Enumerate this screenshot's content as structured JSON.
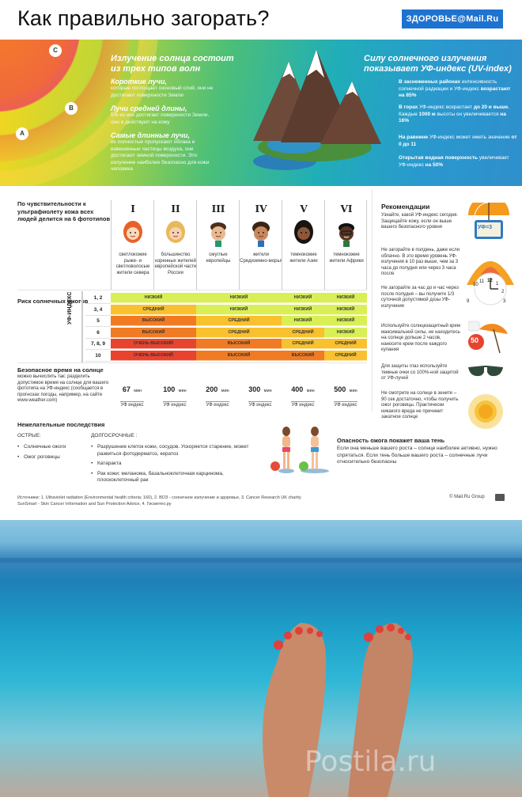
{
  "header": {
    "title": "Как правильно загорать?",
    "brand": "ЗДОРОВЬЕ@Mail.Ru"
  },
  "waves": {
    "title": "Излучение солнца состоит из трех типов волн",
    "labels": [
      "C",
      "B",
      "A"
    ],
    "items": [
      {
        "head": "Короткие лучи,",
        "text": "которые поглощает озоновый слой, они не достигают поверхности Земли"
      },
      {
        "head": "Лучи средней длины,",
        "text": "5% из них достигает поверхности Земли, они и действуют на кожу"
      },
      {
        "head": "Самые длинные лучи,",
        "text": "их полностью пропускают облака и взвешенные частицы воздуха, они достигают земной поверхности. Это излучение наиболее безопасно для кожи человека"
      }
    ]
  },
  "uv_index": {
    "title": "Силу солнечного излучения показывает УФ-индекс (UV-index)",
    "items": [
      {
        "bold": "В заснеженных районах",
        "text": "интенсивность солнечной радиации и УФ-индекс",
        "bold2": "возрастают на 85%"
      },
      {
        "bold": "В горах",
        "text": "УФ-индекс возрастает",
        "bold2": "до 20 и выше.",
        "text2": "Каждые",
        "bold3": "1000 м",
        "text3": "высоты он увеличивается",
        "bold4": "на 16%"
      },
      {
        "bold": "На равнине",
        "text": "УФ-индекс может иметь значение",
        "bold2": "от 0 до 11"
      },
      {
        "bold": "Открытая водная поверхность",
        "text": "увеличивает УФ-индекс",
        "bold2": "на 50%"
      }
    ]
  },
  "phototypes": {
    "intro": "По чувствительности к ультрафиолету кожа всех людей делится на 6 фототипов",
    "types": [
      {
        "num": "I",
        "desc": "светлокожие рыже- и светловолосые жители севера"
      },
      {
        "num": "II",
        "desc": "большинство коренных жителей европейской части России"
      },
      {
        "num": "III",
        "desc": "смуглые европейцы"
      },
      {
        "num": "IV",
        "desc": "жители Средиземно-морья"
      },
      {
        "num": "V",
        "desc": "темнокожие жители Азии"
      },
      {
        "num": "VI",
        "desc": "темнокожие жители Африки"
      }
    ]
  },
  "risk": {
    "title": "Риск солнечных ожогов",
    "uv_label": "УФ-ИНДЕКС",
    "rows": [
      {
        "uv": "1, 2",
        "cells": [
          "НИЗКИЙ",
          "НИЗКИЙ",
          "НИЗКИЙ",
          "НИЗКИЙ"
        ]
      },
      {
        "uv": "3, 4",
        "cells": [
          "СРЕДНИЙ",
          "НИЗКИЙ",
          "НИЗКИЙ",
          "НИЗКИЙ"
        ]
      },
      {
        "uv": "5",
        "cells": [
          "ВЫСОКИЙ",
          "СРЕДНИЙ",
          "НИЗКИЙ",
          "НИЗКИЙ"
        ]
      },
      {
        "uv": "6",
        "cells": [
          "ВЫСОКИЙ",
          "СРЕДНИЙ",
          "СРЕДНИЙ",
          "НИЗКИЙ"
        ]
      },
      {
        "uv": "7, 8, 9",
        "cells": [
          "ОЧЕНЬ ВЫСОКИЙ",
          "ВЫСОКИЙ",
          "СРЕДНИЙ",
          "СРЕДНИЙ"
        ]
      },
      {
        "uv": "10",
        "cells": [
          "ОЧЕНЬ ВЫСОКИЙ",
          "ВЫСОКИЙ",
          "ВЫСОКИЙ",
          "СРЕДНИЙ"
        ]
      }
    ],
    "colors": {
      "НИЗКИЙ": "#d9ef55",
      "СРЕДНИЙ": "#f9c12e",
      "ВЫСОКИЙ": "#f07b22",
      "ОЧЕНЬ ВЫСОКИЙ": "#e8432e"
    }
  },
  "safe_time": {
    "title": "Безопасное время на солнце",
    "text": "можно вычислить так: разделить допустимое время на солнце для вашего фототипа на УФ-индекс (сообщается в прогнозах погоды, например, на сайте www.weather.com)",
    "unit": "мин",
    "sub": "УФ индекс",
    "values": [
      "67",
      "100",
      "200",
      "300",
      "400",
      "500"
    ]
  },
  "recommendations": {
    "title": "Рекомендации",
    "items": [
      "Узнайте, какой УФ-индекс сегодня. Защищайте кожу, если он выше вашего безопасного уровня",
      "Не загорайте в полдень, даже если облачно. В это время уровень УФ-излучения в 10 раз выше, чем за 3 часа до полудня или через 3 часа после",
      "Не загорайте за час до и час через после полудня – вы получите 1/3 суточной допустимой дозы УФ-излучения",
      "Используйте солнцезащитный крем максимальной силы, не находитесь на солнце дольше 2 часов, наносите крем после каждого купания",
      "Для защиты глаз используйте темные очки со 100%-ной защитой от УФ-лучей",
      "Не смотрите на солнце в зените – 90 сек достаточно, чтобы получить ожог роговицы. Практически никакого вреда не причинит закатное солнце"
    ],
    "tv_label": "УФ=3",
    "clock": [
      "12",
      "1",
      "2",
      "3",
      "10",
      "11",
      "9"
    ],
    "spf": "50"
  },
  "consequences": {
    "title": "Нежелательные последствия",
    "acute_title": "ОСТРЫЕ:",
    "acute": [
      "Солнечные ожоги",
      "Ожог роговицы"
    ],
    "chronic_title": "ДОЛГОСРОЧНЫЕ :",
    "chronic": [
      "Разрушение клеток кожи, сосудов. Ускоряется старение, может развиться фотодерматоз, кератоз",
      "Катаракта",
      "Рак кожи: меланома, базальноклеточная карцинома, плоскоклеточный рак"
    ]
  },
  "danger": {
    "title": "Опасность ожога покажет ваша тень",
    "text": "Если она меньше вашего роста – солнце наиболее активно, нужно спрятаться. Если тень больше вашего роста – солнечные лучи относительно безопасны"
  },
  "footer": {
    "sources": "Источники: 1. Ultraviolet radiation (Environmental health criteria; 160), 2. ВОЗ - солнечное излучение и здоровье, 3. Cancer Research UK charity SunSmart - Skin Cancer Information and Sun Protection Advice, 4. Гисметео.ру",
    "copyright": "© Mail.Ru Group"
  },
  "photo": {
    "watermark": "Postila.ru"
  }
}
